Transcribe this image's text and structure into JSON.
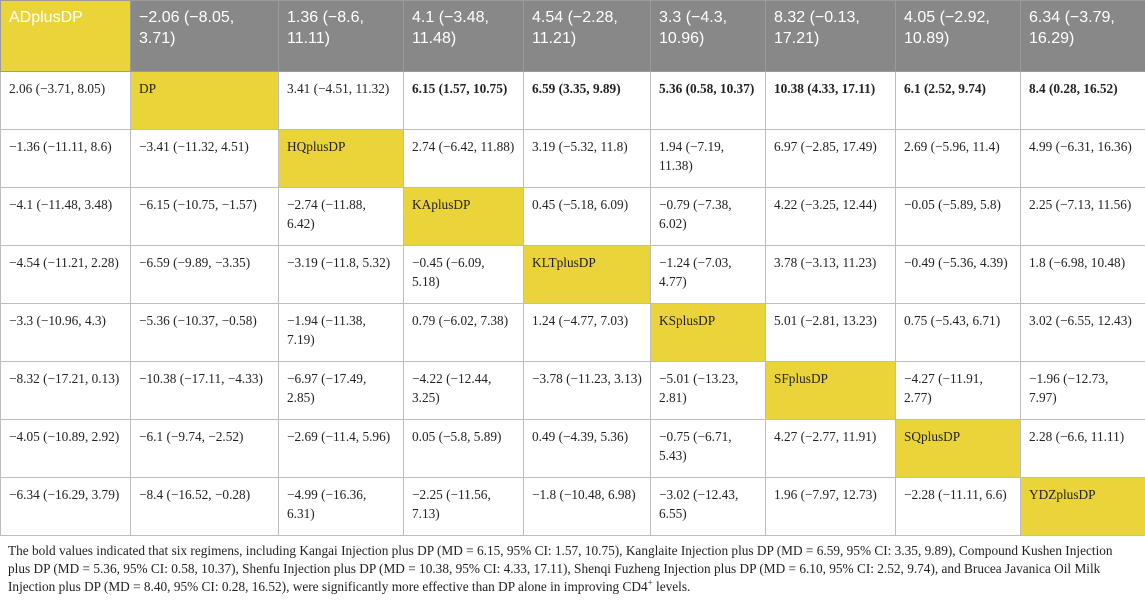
{
  "table": {
    "rows": [
      [
        "ADplusDP",
        "−2.06 (−8.05, 3.71)",
        "1.36 (−8.6, 11.11)",
        "4.1 (−3.48, 11.48)",
        "4.54 (−2.28, 11.21)",
        "3.3 (−4.3, 10.96)",
        "8.32 (−0.13, 17.21)",
        "4.05 (−2.92, 10.89)",
        "6.34 (−3.79, 16.29)"
      ],
      [
        "2.06 (−3.71, 8.05)",
        "DP",
        "3.41 (−4.51, 11.32)",
        "6.15 (1.57, 10.75)",
        "6.59 (3.35, 9.89)",
        "5.36 (0.58, 10.37)",
        "10.38 (4.33, 17.11)",
        "6.1 (2.52, 9.74)",
        "8.4 (0.28, 16.52)"
      ],
      [
        "−1.36 (−11.11, 8.6)",
        "−3.41 (−11.32, 4.51)",
        "HQplusDP",
        "2.74 (−6.42, 11.88)",
        "3.19 (−5.32, 11.8)",
        "1.94 (−7.19, 11.38)",
        "6.97 (−2.85, 17.49)",
        "2.69 (−5.96, 11.4)",
        "4.99 (−6.31, 16.36)"
      ],
      [
        "−4.1 (−11.48, 3.48)",
        "−6.15 (−10.75, −1.57)",
        "−2.74 (−11.88, 6.42)",
        "KAplusDP",
        "0.45 (−5.18, 6.09)",
        "−0.79 (−7.38, 6.02)",
        "4.22 (−3.25, 12.44)",
        "−0.05 (−5.89, 5.8)",
        "2.25 (−7.13, 11.56)"
      ],
      [
        "−4.54 (−11.21, 2.28)",
        "−6.59 (−9.89, −3.35)",
        "−3.19 (−11.8, 5.32)",
        "−0.45 (−6.09, 5.18)",
        "KLTplusDP",
        "−1.24 (−7.03, 4.77)",
        "3.78 (−3.13, 11.23)",
        "−0.49 (−5.36, 4.39)",
        "1.8 (−6.98, 10.48)"
      ],
      [
        "−3.3 (−10.96, 4.3)",
        "−5.36 (−10.37, −0.58)",
        "−1.94 (−11.38, 7.19)",
        "0.79 (−6.02, 7.38)",
        "1.24 (−4.77, 7.03)",
        "KSplusDP",
        "5.01 (−2.81, 13.23)",
        "0.75 (−5.43, 6.71)",
        "3.02 (−6.55, 12.43)"
      ],
      [
        "−8.32 (−17.21, 0.13)",
        "−10.38 (−17.11, −4.33)",
        "−6.97 (−17.49, 2.85)",
        "−4.22 (−12.44, 3.25)",
        "−3.78 (−11.23, 3.13)",
        "−5.01 (−13.23, 2.81)",
        "SFplusDP",
        "−4.27 (−11.91, 2.77)",
        "−1.96 (−12.73, 7.97)"
      ],
      [
        "−4.05 (−10.89, 2.92)",
        "−6.1 (−9.74, −2.52)",
        "−2.69 (−11.4, 5.96)",
        "0.05 (−5.8, 5.89)",
        "0.49 (−4.39, 5.36)",
        "−0.75 (−6.71, 5.43)",
        "4.27 (−2.77, 11.91)",
        "SQplusDP",
        "2.28 (−6.6, 11.11)"
      ],
      [
        "−6.34 (−16.29, 3.79)",
        "−8.4 (−16.52, −0.28)",
        "−4.99 (−16.36, 6.31)",
        "−2.25 (−11.56, 7.13)",
        "−1.8 (−10.48, 6.98)",
        "−3.02 (−12.43, 6.55)",
        "1.96 (−7.97, 12.73)",
        "−2.28 (−11.11, 6.6)",
        "YDZplusDP"
      ]
    ],
    "bold_cells": [
      [
        1,
        3
      ],
      [
        1,
        4
      ],
      [
        1,
        5
      ],
      [
        1,
        6
      ],
      [
        1,
        7
      ],
      [
        1,
        8
      ]
    ],
    "diagonal_color": "#ead43a",
    "header_color": "#888888"
  },
  "footnote": {
    "text": "The bold values indicated that six regimens, including Kangai Injection plus DP (MD = 6.15, 95% CI: 1.57, 10.75), Kanglaite Injection plus DP (MD = 6.59, 95% CI: 3.35, 9.89), Compound Kushen Injection plus DP (MD = 5.36, 95% CI: 0.58, 10.37), Shenfu Injection plus DP (MD = 10.38, 95% CI: 4.33, 17.11), Shenqi Fuzheng Injection plus DP (MD = 6.10, 95% CI: 2.52, 9.74), and Brucea Javanica Oil Milk Injection plus DP (MD = 8.40, 95% CI: 0.28, 16.52), were significantly more effective than DP alone in improving CD4",
    "superscript": "+",
    "tail": " levels."
  }
}
